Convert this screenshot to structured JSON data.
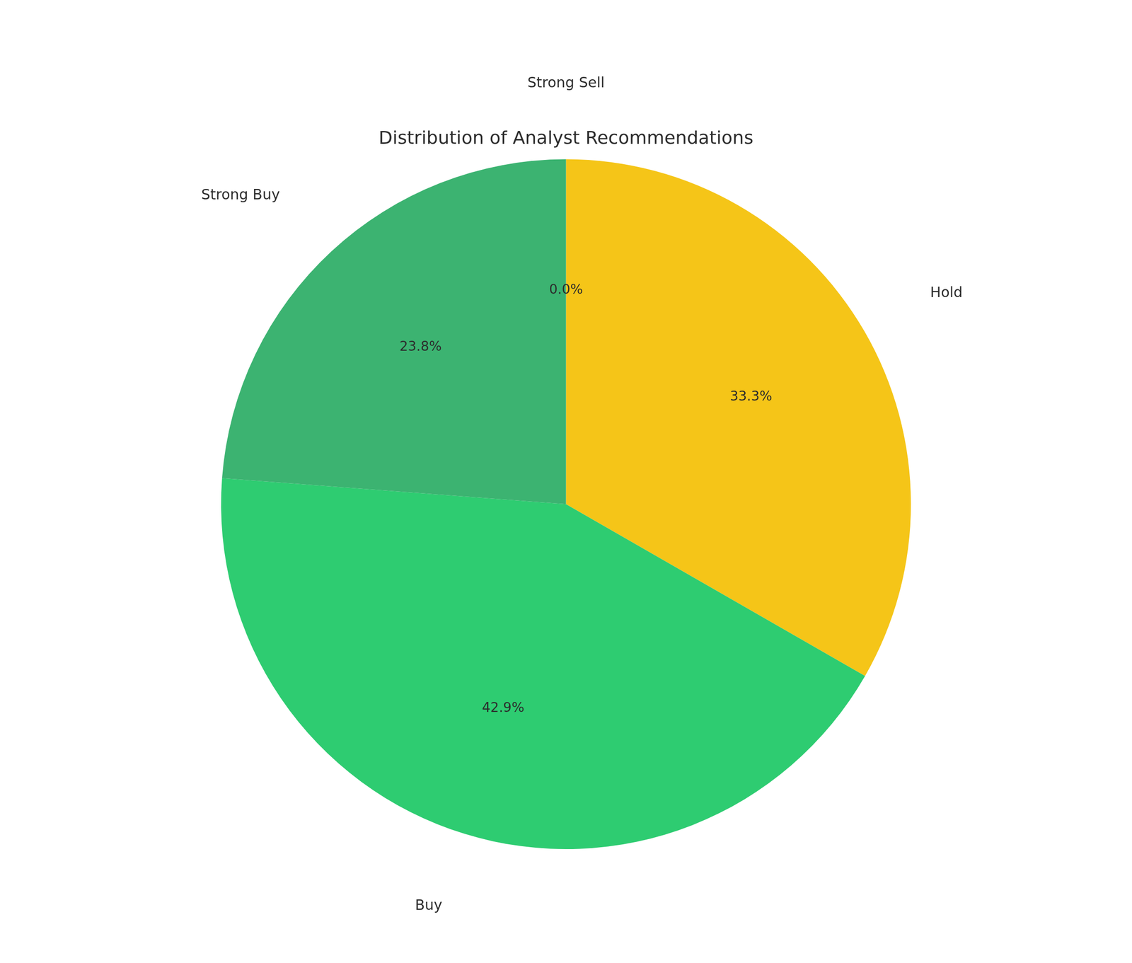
{
  "chart_data": {
    "type": "pie",
    "title": "Distribution of Analyst Recommendations",
    "categories": [
      "Strong Sell",
      "Hold",
      "Buy",
      "Strong Buy"
    ],
    "values": [
      0.0,
      33.3,
      42.9,
      23.8
    ],
    "value_labels": [
      "0.0%",
      "33.3%",
      "42.9%",
      "23.8%"
    ],
    "colors": [
      "#cccccc",
      "#F5C518",
      "#2ECC71",
      "#3CB371"
    ],
    "data_labels": true
  }
}
